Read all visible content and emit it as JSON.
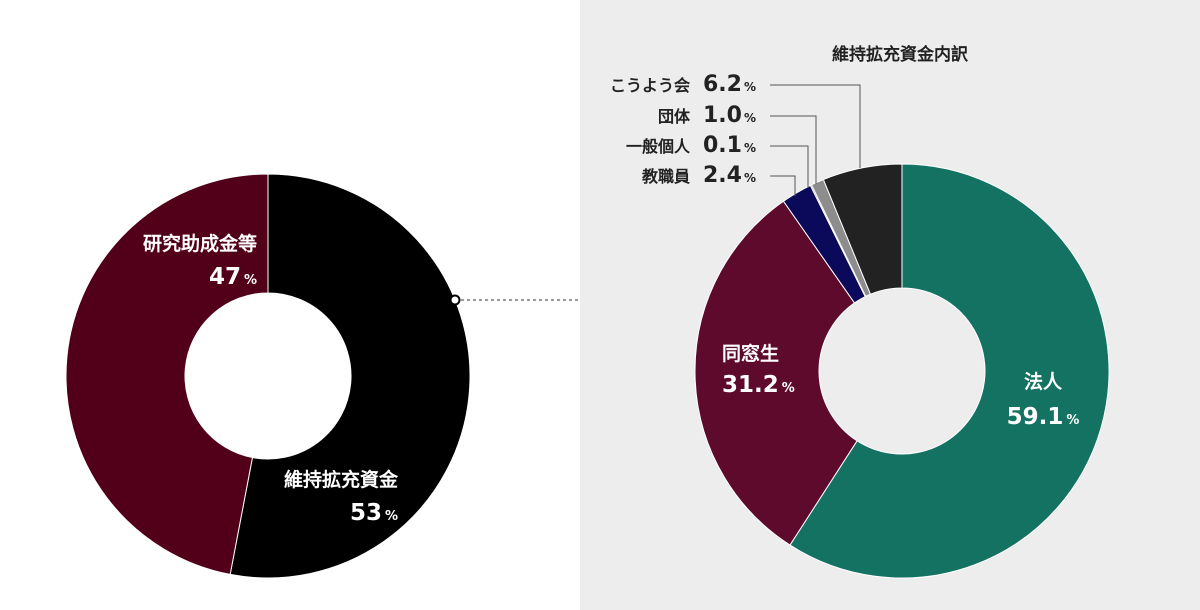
{
  "chart_data": [
    {
      "type": "pie",
      "donut": true,
      "unit": "%",
      "slices": [
        {
          "label": "維持拡充資金",
          "value": 53,
          "display": "53",
          "color": "#000000"
        },
        {
          "label": "研究助成金等",
          "value": 47,
          "display": "47",
          "color": "#52001a"
        }
      ]
    },
    {
      "type": "pie",
      "donut": true,
      "title": "維持拡充資金内訳",
      "unit": "%",
      "slices": [
        {
          "label": "法人",
          "value": 59.1,
          "display": "59.1",
          "color": "#137262"
        },
        {
          "label": "同窓生",
          "value": 31.2,
          "display": "31.2",
          "color": "#5e0a2c"
        },
        {
          "label": "教職員",
          "value": 2.4,
          "display": "2.4",
          "color": "#0b0a5a"
        },
        {
          "label": "一般個人",
          "value": 0.1,
          "display": "0.1",
          "color": "#5b3a1a"
        },
        {
          "label": "団体",
          "value": 1.0,
          "display": "1.0",
          "color": "#8d8d8d"
        },
        {
          "label": "こうよう会",
          "value": 6.2,
          "display": "6.2",
          "color": "#222222"
        }
      ]
    }
  ]
}
